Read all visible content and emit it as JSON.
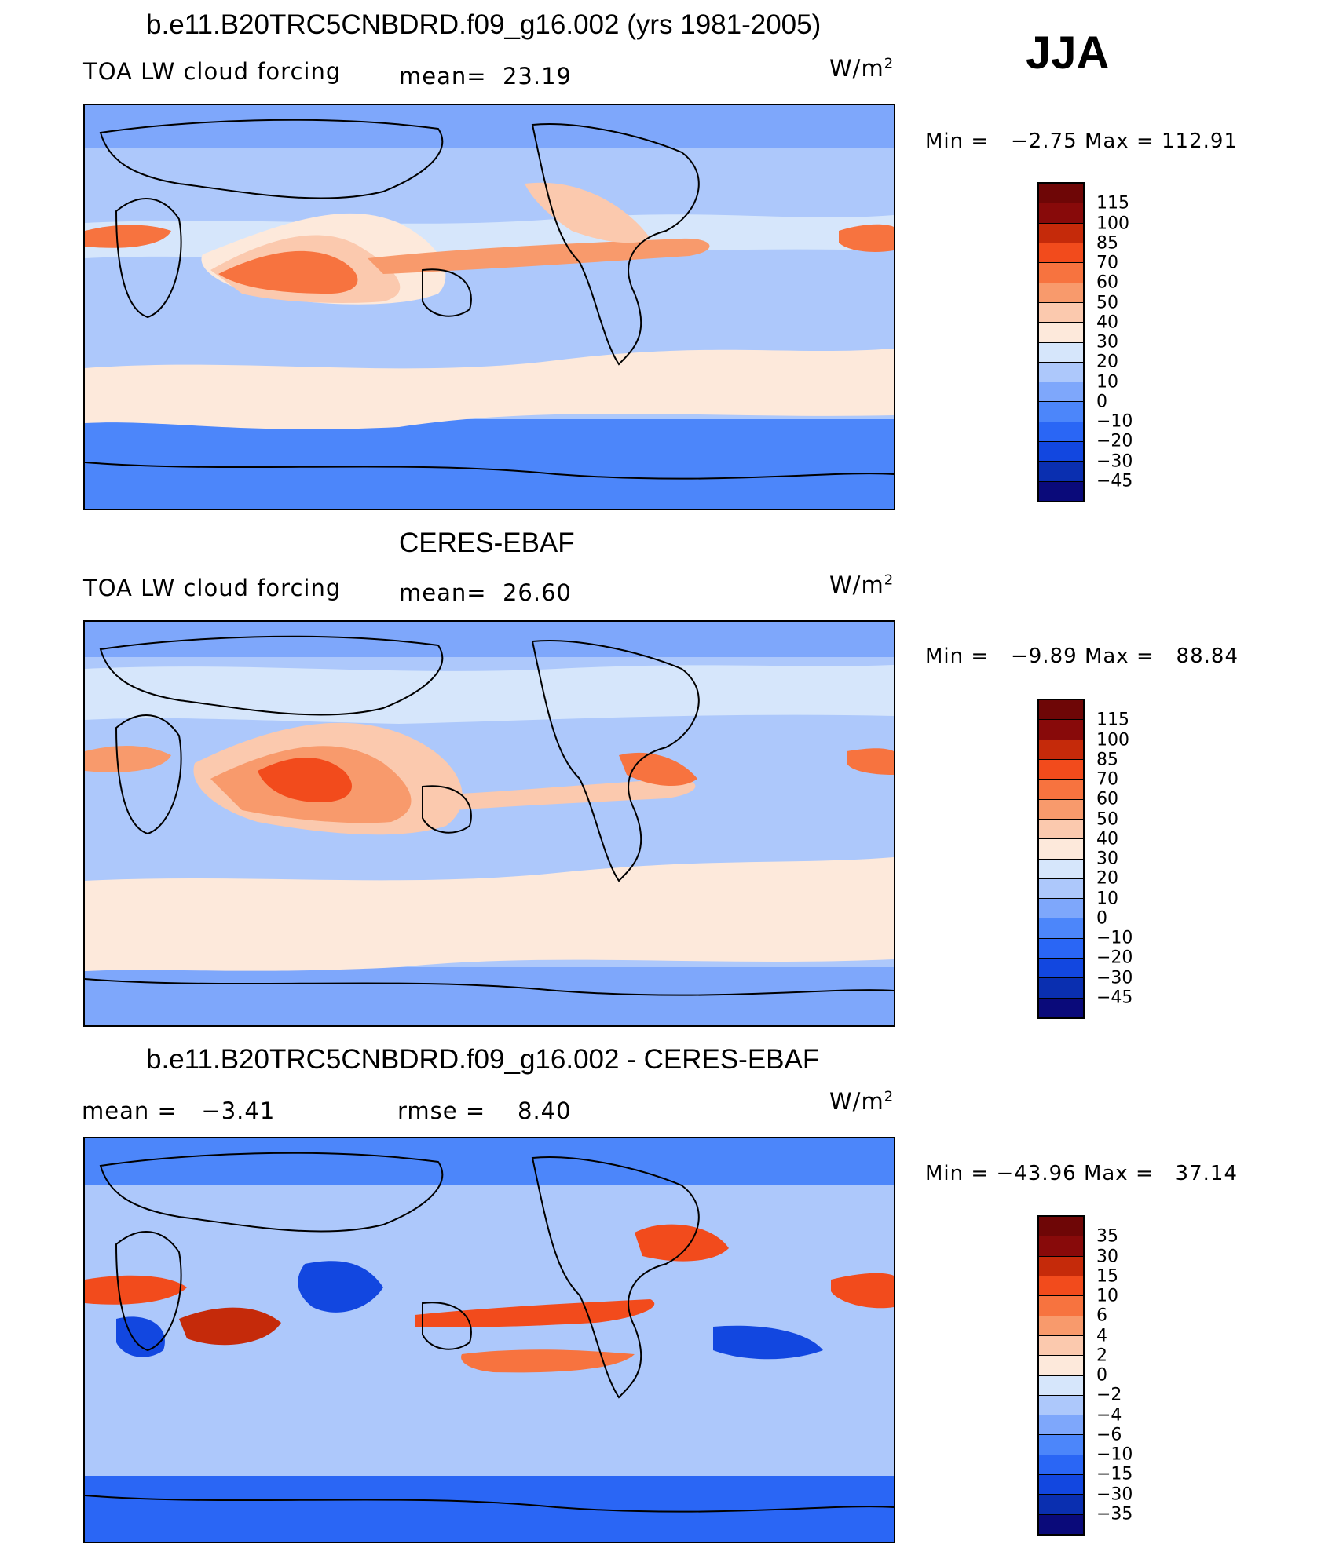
{
  "season": "JJA",
  "palette_main": [
    "#0a0a7a",
    "#0a2fb0",
    "#1247e0",
    "#2a66f5",
    "#4c86fa",
    "#7ea7fb",
    "#adc8fb",
    "#d6e6fb",
    "#fde9db",
    "#fbc9ae",
    "#f89a6c",
    "#f7733f",
    "#f24b1c",
    "#c52a0a",
    "#880a0a"
  ],
  "palette_diff": [
    "#0a0a7a",
    "#0a2fb0",
    "#1247e0",
    "#2a66f5",
    "#4c86fa",
    "#7ea7fb",
    "#adc8fb",
    "#d6e6fb",
    "#fde9db",
    "#fbc9ae",
    "#f89a6c",
    "#f7733f",
    "#f24b1c",
    "#c52a0a",
    "#880a0a"
  ],
  "panels": [
    {
      "title": "b.e11.B20TRC5CNBDRD.f09_g16.002 (yrs 1981-2005)",
      "left_label": "TOA LW cloud forcing",
      "mean_label": "mean=",
      "mean_value": "23.19",
      "units": "W/m",
      "units_sup": "2",
      "min_label": "Min =",
      "min_value": "−2.75",
      "max_label": "Max =",
      "max_value": "112.91",
      "colorbar_ticks": [
        "115",
        "100",
        "85",
        "70",
        "60",
        "50",
        "40",
        "30",
        "20",
        "10",
        "0",
        "−10",
        "−20",
        "−30",
        "−45"
      ]
    },
    {
      "title": "CERES-EBAF",
      "left_label": "TOA LW cloud forcing",
      "mean_label": "mean=",
      "mean_value": "26.60",
      "units": "W/m",
      "units_sup": "2",
      "min_label": "Min =",
      "min_value": "−9.89",
      "max_label": "Max =",
      "max_value": "88.84",
      "colorbar_ticks": [
        "115",
        "100",
        "85",
        "70",
        "60",
        "50",
        "40",
        "30",
        "20",
        "10",
        "0",
        "−10",
        "−20",
        "−30",
        "−45"
      ]
    },
    {
      "title": "b.e11.B20TRC5CNBDRD.f09_g16.002 - CERES-EBAF",
      "left_label": "mean =",
      "left_value": "−3.41",
      "mean_label": "rmse =",
      "mean_value": "8.40",
      "units": "W/m",
      "units_sup": "2",
      "min_label": "Min =",
      "min_value": "−43.96",
      "max_label": "Max =",
      "max_value": "37.14",
      "colorbar_ticks": [
        "35",
        "30",
        "15",
        "10",
        "6",
        "4",
        "2",
        "0",
        "−2",
        "−4",
        "−6",
        "−10",
        "−15",
        "−30",
        "−35"
      ]
    }
  ]
}
